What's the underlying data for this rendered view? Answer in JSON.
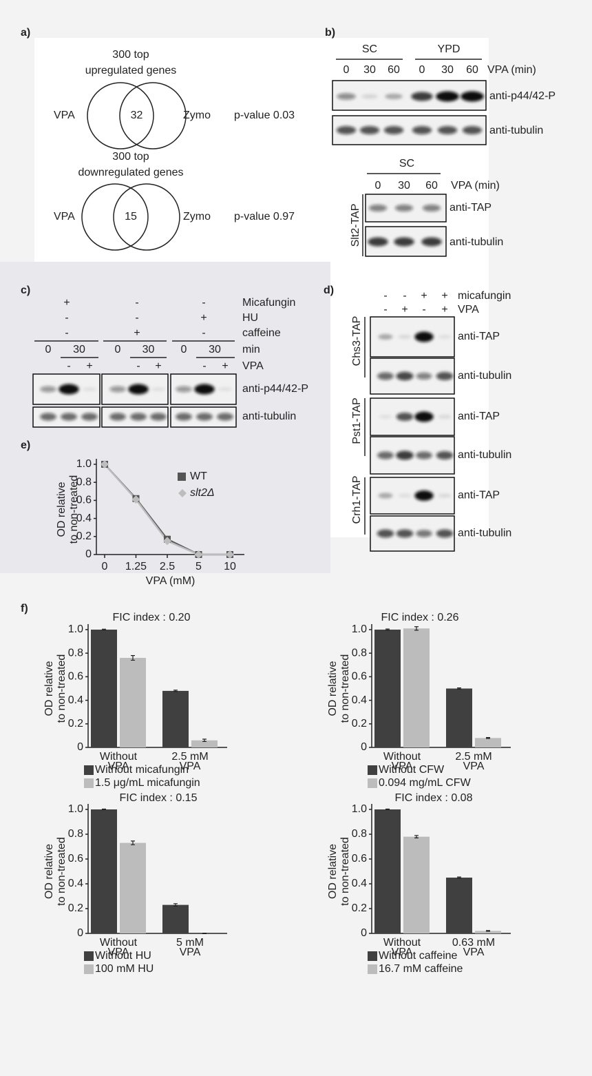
{
  "panel_labels": [
    "a)",
    "b)",
    "c)",
    "d)",
    "e)",
    "f)"
  ],
  "panel_a": {
    "venns": [
      {
        "title": [
          "300 top",
          "upregulated genes"
        ],
        "left": "VPA",
        "overlap": "32",
        "right": "Zymo",
        "p_value": "p-value 0.03"
      },
      {
        "title": [
          "300 top",
          "downregulated genes"
        ],
        "left": "VPA",
        "overlap": "15",
        "right": "Zymo",
        "p_value": "p-value 0.97"
      }
    ]
  },
  "panel_b": {
    "blots": [
      {
        "groups": [
          "SC",
          "YPD"
        ],
        "lanes": [
          "0",
          "30",
          "60",
          "0",
          "30",
          "60"
        ],
        "lane_unit": "VPA (min)",
        "rows": [
          "anti-p44/42-P",
          "anti-tubulin"
        ]
      },
      {
        "strain": "Slt2-TAP",
        "groups": [
          "SC"
        ],
        "lanes": [
          "0",
          "30",
          "60"
        ],
        "lane_unit": "VPA (min)",
        "rows": [
          "anti-TAP",
          "anti-tubulin"
        ]
      }
    ]
  },
  "panel_c": {
    "conditions": [
      "Micafungin",
      "HU",
      "caffeine"
    ],
    "groups": [
      {
        "signs": [
          "+",
          "-",
          "-"
        ],
        "times": [
          "0",
          "30"
        ],
        "vpa": [
          "-",
          "+"
        ]
      },
      {
        "signs": [
          "-",
          "-",
          "+"
        ],
        "times": [
          "0",
          "30"
        ],
        "vpa": [
          "-",
          "+"
        ]
      },
      {
        "signs": [
          "-",
          "+",
          "-"
        ],
        "times": [
          "0",
          "30"
        ],
        "vpa": [
          "-",
          "+"
        ]
      }
    ],
    "time_label": "min",
    "vpa_label": "VPA",
    "rows": [
      "anti-p44/42-P",
      "anti-tubulin"
    ]
  },
  "panel_d": {
    "treatments": [
      {
        "name": "micafungin",
        "signs": [
          "-",
          "-",
          "+",
          "+"
        ]
      },
      {
        "name": "VPA",
        "signs": [
          "-",
          "+",
          "-",
          "+"
        ]
      }
    ],
    "strains": [
      {
        "name": "Chs3-TAP",
        "rows": [
          "anti-TAP",
          "anti-tubulin"
        ]
      },
      {
        "name": "Pst1-TAP",
        "rows": [
          "anti-TAP",
          "anti-tubulin"
        ]
      },
      {
        "name": "Crh1-TAP",
        "rows": [
          "anti-TAP",
          "anti-tubulin"
        ]
      }
    ]
  },
  "chart_data": [
    {
      "type": "line",
      "ylabel": [
        "OD relative",
        "to non-treated"
      ],
      "xlabel": "VPA (mM)",
      "categories": [
        "0",
        "1.25",
        "2.5",
        "5",
        "10"
      ],
      "series": [
        {
          "name": "WT",
          "color": "#555555",
          "marker": "square",
          "values": [
            1.0,
            0.62,
            0.17,
            0,
            0
          ]
        },
        {
          "name": "slt2Δ",
          "color": "#bdbdbd",
          "marker": "diamond",
          "values": [
            1.0,
            0.61,
            0.15,
            0,
            0
          ]
        }
      ],
      "ylim": [
        0,
        1.0
      ],
      "yticks": [
        0,
        0.2,
        0.4,
        0.6,
        0.8,
        {
          "value": 1,
          "label": "1.0"
        }
      ],
      "legend": "upper right"
    },
    {
      "type": "bar",
      "title": "FIC index : 0.20",
      "ylabel": [
        "OD relative",
        "to non-treated"
      ],
      "categories": [
        [
          "Without",
          "VPA"
        ],
        [
          "2.5 mM",
          "VPA"
        ]
      ],
      "series": [
        {
          "name": "Without micafungin",
          "color": "#404040",
          "values": [
            1.0,
            0.48
          ],
          "errors": [
            0.004,
            0.006
          ]
        },
        {
          "name": "1.5 μg/mL micafungin",
          "color": "#bcbcbc",
          "values": [
            0.76,
            0.06
          ],
          "errors": [
            0.02,
            0.01
          ]
        }
      ],
      "ylim": [
        0,
        1.0
      ],
      "yticks": [
        0,
        0.2,
        0.4,
        0.6,
        0.8,
        {
          "value": 1,
          "label": "1.0"
        }
      ],
      "legend": "below"
    },
    {
      "type": "bar",
      "title": "FIC index : 0.26",
      "ylabel": [
        "OD relative",
        "to non-treated"
      ],
      "categories": [
        [
          "Without",
          "VPA"
        ],
        [
          "2.5 mM",
          "VPA"
        ]
      ],
      "series": [
        {
          "name": "Without CFW",
          "color": "#404040",
          "values": [
            1.0,
            0.5
          ],
          "errors": [
            0.005,
            0.005
          ]
        },
        {
          "name": "0.094 mg/mL CFW",
          "color": "#bcbcbc",
          "values": [
            1.01,
            0.08
          ],
          "errors": [
            0.015,
            0.004
          ]
        }
      ],
      "ylim": [
        0,
        1.0
      ],
      "yticks": [
        0,
        0.2,
        0.4,
        0.6,
        0.8,
        {
          "value": 1,
          "label": "1.0"
        }
      ],
      "legend": "below"
    },
    {
      "type": "bar",
      "title": "FIC index : 0.15",
      "ylabel": [
        "OD relative",
        "to non-treated"
      ],
      "categories": [
        [
          "Without",
          "VPA"
        ],
        [
          "5 mM",
          "VPA"
        ]
      ],
      "series": [
        {
          "name": "Without HU",
          "color": "#404040",
          "values": [
            1.0,
            0.23
          ],
          "errors": [
            0.003,
            0.01
          ]
        },
        {
          "name": "100 mM HU",
          "color": "#bcbcbc",
          "values": [
            0.73,
            0
          ],
          "errors": [
            0.015,
            0.002
          ]
        }
      ],
      "ylim": [
        0,
        1.0
      ],
      "yticks": [
        0,
        0.2,
        0.4,
        0.6,
        0.8,
        {
          "value": 1,
          "label": "1.0"
        }
      ],
      "legend": "below"
    },
    {
      "type": "bar",
      "title": "FIC index : 0.08",
      "ylabel": [
        "OD relative",
        "to non-treated"
      ],
      "categories": [
        [
          "Without",
          "VPA"
        ],
        [
          "0.63 mM",
          "VPA"
        ]
      ],
      "series": [
        {
          "name": "Without caffeine",
          "color": "#404040",
          "values": [
            1.0,
            0.45
          ],
          "errors": [
            0.003,
            0.005
          ]
        },
        {
          "name": "16.7 mM caffeine",
          "color": "#bcbcbc",
          "values": [
            0.78,
            0.02
          ],
          "errors": [
            0.01,
            0.003
          ]
        }
      ],
      "ylim": [
        0,
        1.0
      ],
      "yticks": [
        0,
        0.2,
        0.4,
        0.6,
        0.8,
        {
          "value": 1,
          "label": "1.0"
        }
      ],
      "legend": "below"
    }
  ]
}
